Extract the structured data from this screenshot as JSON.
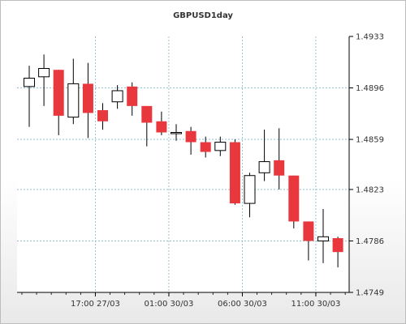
{
  "chart_data": {
    "type": "candlestick",
    "title": "GBPUSD1day",
    "xlabel": "",
    "ylabel": "",
    "ylim": [
      1.4749,
      1.4933
    ],
    "y_ticks": [
      "1.4933",
      "1.4896",
      "1.4859",
      "1.4823",
      "1.4786",
      "1.4749"
    ],
    "x_ticks": [
      {
        "label": "17:00 27/03",
        "index": 5
      },
      {
        "label": "01:00 30/03",
        "index": 10
      },
      {
        "label": "06:00 30/03",
        "index": 15
      },
      {
        "label": "11:00 30/03",
        "index": 20
      }
    ],
    "grid": true,
    "colors": {
      "up": "#ffffff",
      "down": "#e8383d",
      "outline": "#000000",
      "grid": "#7fb8c9"
    },
    "candles": [
      {
        "o": 1.4897,
        "h": 1.4912,
        "l": 1.4868,
        "c": 1.4903
      },
      {
        "o": 1.4904,
        "h": 1.492,
        "l": 1.4883,
        "c": 1.491
      },
      {
        "o": 1.4909,
        "h": 1.4909,
        "l": 1.4862,
        "c": 1.4876
      },
      {
        "o": 1.4875,
        "h": 1.4917,
        "l": 1.487,
        "c": 1.4899
      },
      {
        "o": 1.4899,
        "h": 1.4914,
        "l": 1.486,
        "c": 1.4878
      },
      {
        "o": 1.488,
        "h": 1.4885,
        "l": 1.4866,
        "c": 1.4872
      },
      {
        "o": 1.4886,
        "h": 1.4898,
        "l": 1.4881,
        "c": 1.4894
      },
      {
        "o": 1.4897,
        "h": 1.49,
        "l": 1.4876,
        "c": 1.4883
      },
      {
        "o": 1.4883,
        "h": 1.4883,
        "l": 1.4854,
        "c": 1.4871
      },
      {
        "o": 1.4872,
        "h": 1.4879,
        "l": 1.4862,
        "c": 1.4864
      },
      {
        "o": 1.4864,
        "h": 1.487,
        "l": 1.4858,
        "c": 1.4864
      },
      {
        "o": 1.4865,
        "h": 1.4868,
        "l": 1.4848,
        "c": 1.4857
      },
      {
        "o": 1.4857,
        "h": 1.4861,
        "l": 1.4846,
        "c": 1.485
      },
      {
        "o": 1.4851,
        "h": 1.4861,
        "l": 1.4847,
        "c": 1.4857
      },
      {
        "o": 1.4857,
        "h": 1.4859,
        "l": 1.4812,
        "c": 1.4813
      },
      {
        "o": 1.4813,
        "h": 1.4835,
        "l": 1.4803,
        "c": 1.4833
      },
      {
        "o": 1.4835,
        "h": 1.4866,
        "l": 1.4829,
        "c": 1.4843
      },
      {
        "o": 1.4844,
        "h": 1.4867,
        "l": 1.4823,
        "c": 1.4833
      },
      {
        "o": 1.4833,
        "h": 1.4833,
        "l": 1.4795,
        "c": 1.48
      },
      {
        "o": 1.48,
        "h": 1.48,
        "l": 1.4772,
        "c": 1.4786
      },
      {
        "o": 1.4786,
        "h": 1.4809,
        "l": 1.477,
        "c": 1.4789
      },
      {
        "o": 1.4788,
        "h": 1.4789,
        "l": 1.4767,
        "c": 1.4778
      }
    ]
  }
}
